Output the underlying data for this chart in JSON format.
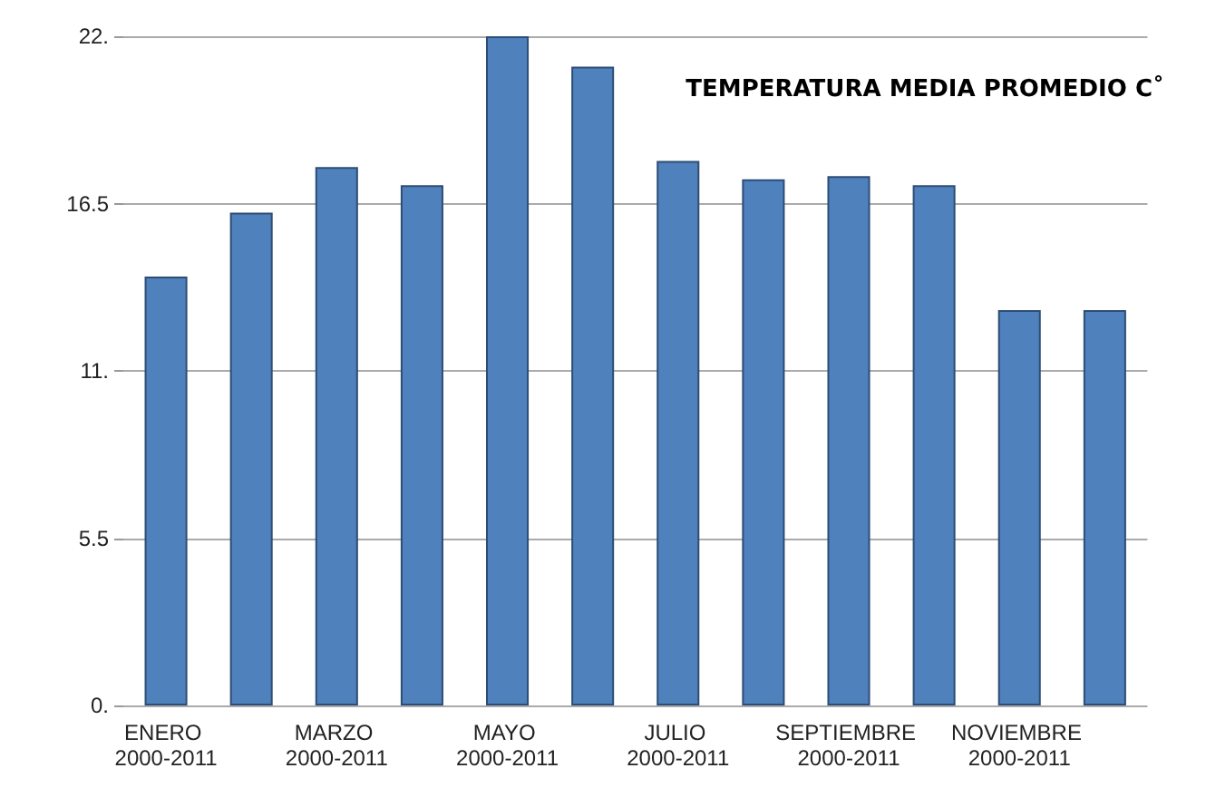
{
  "chart_data": {
    "type": "bar",
    "title": "TEMPERATURA MEDIA PROMEDIO C˚",
    "categories": [
      "ENERO 2000-2011",
      null,
      "MARZO 2000-2011",
      null,
      "MAYO 2000-2011",
      null,
      "JULIO 2000-2011",
      null,
      "SEPTIEMBRE 2000-2011",
      null,
      "NOVIEMBRE 2000-2011",
      null
    ],
    "values": [
      14.1,
      16.2,
      17.7,
      17.1,
      22,
      21.0,
      17.9,
      17.3,
      17.4,
      17.1,
      13.0,
      13.0
    ],
    "color": "#4f81bd",
    "ylim": [
      0,
      22
    ],
    "yticks": [
      {
        "value": 0,
        "label": "0."
      },
      {
        "value": 5.5,
        "label": "5.5"
      },
      {
        "value": 11,
        "label": "11."
      },
      {
        "value": 16.5,
        "label": "16.5"
      },
      {
        "value": 22,
        "label": "22."
      }
    ],
    "grid": "y"
  }
}
